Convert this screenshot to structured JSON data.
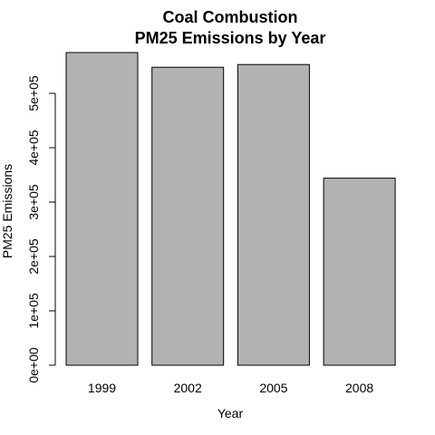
{
  "chart_data": {
    "type": "bar",
    "title_lines": [
      "Coal Combustion",
      "PM25 Emissions by Year"
    ],
    "xlabel": "Year",
    "ylabel": "PM25 Emissions",
    "categories": [
      "1999",
      "2002",
      "2005",
      "2008"
    ],
    "values": [
      575000,
      548000,
      553000,
      344000
    ],
    "ylim": [
      0,
      580000
    ],
    "yticks": [
      0,
      100000,
      200000,
      300000,
      400000,
      500000
    ],
    "ytick_labels": [
      "0e+00",
      "1e+05",
      "2e+05",
      "3e+05",
      "4e+05",
      "5e+05"
    ],
    "grid": false,
    "bar_color": "#b2b2b2",
    "bar_stroke": "#000000"
  }
}
